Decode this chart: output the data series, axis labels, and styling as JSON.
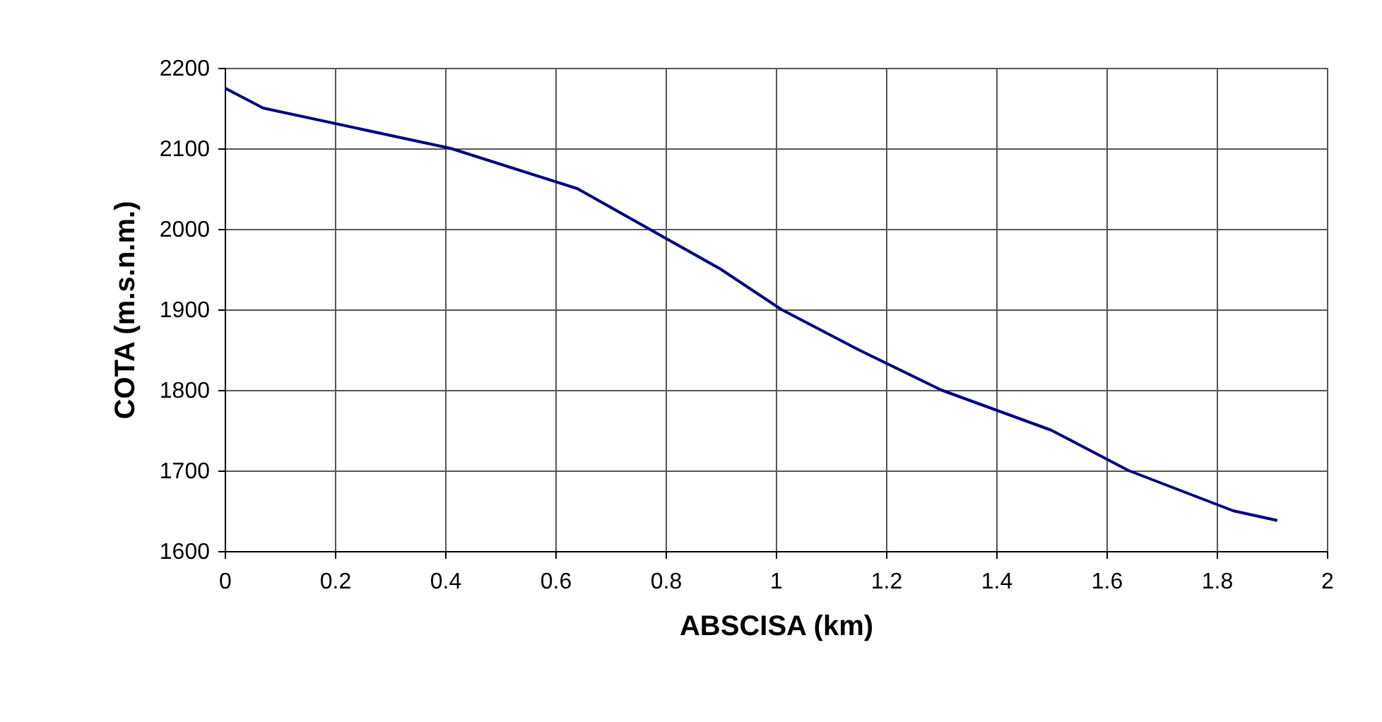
{
  "chart_data": {
    "type": "line",
    "xlabel": "ABSCISA (km)",
    "ylabel": "COTA (m.s.n.m.)",
    "x": [
      0,
      0.07,
      0.41,
      0.64,
      0.9,
      1.01,
      1.15,
      1.3,
      1.5,
      1.64,
      1.83,
      1.91
    ],
    "series": [
      {
        "color": "#000080",
        "values": [
          2175,
          2150,
          2100,
          2050,
          1950,
          1900,
          1850,
          1800,
          1750,
          1700,
          1650,
          1638
        ]
      }
    ],
    "xlim": [
      0,
      2
    ],
    "xticks": [
      0,
      0.2,
      0.4,
      0.6,
      0.8,
      1,
      1.2,
      1.4,
      1.6,
      1.8,
      2
    ],
    "ylim": [
      1600,
      2200
    ],
    "yticks": [
      1600,
      1700,
      1800,
      1900,
      2000,
      2100,
      2200
    ],
    "grid": true,
    "line_style": "solid",
    "marker": "none"
  }
}
